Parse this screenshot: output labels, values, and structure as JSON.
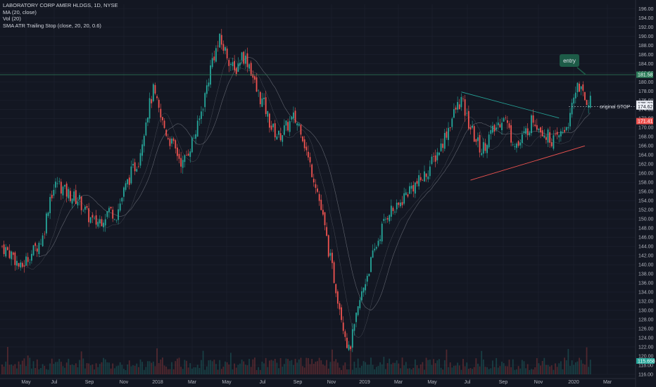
{
  "legend": {
    "title": "LABORATORY CORP AMER HLDGS, 1D, NYSE",
    "ma": "MA (20, close)",
    "vol": "Vol (20)",
    "sma": "SMA ATR Trailing Stop (close, 20, 20, 0.6)"
  },
  "annotations": {
    "entry": "entry",
    "stop": "original STOP"
  },
  "price_tags": {
    "entry": "181.58",
    "current": "175.23",
    "stop_level": "174.62",
    "sma_value": "171.41",
    "volume": "115.658"
  },
  "colors": {
    "background": "#131722",
    "up": "#26a69a",
    "down": "#ef5350",
    "grid": "#1e2230",
    "entry_line": "#2e7d5b",
    "trendline_top": "#26a69a",
    "trendline_bottom": "#ef5350",
    "entry_box": "#1d5b47",
    "ma": "#9598a1"
  },
  "chart_data": {
    "type": "candlestick",
    "symbol": "LABORATORY CORP AMER HLDGS",
    "exchange": "NYSE",
    "interval": "1D",
    "ylim": [
      116,
      197
    ],
    "y_ticks": [
      "196.00",
      "194.00",
      "192.00",
      "190.00",
      "188.00",
      "186.00",
      "184.00",
      "182.00",
      "180.00",
      "178.00",
      "176.00",
      "174.00",
      "172.00",
      "170.00",
      "168.00",
      "166.00",
      "164.00",
      "162.00",
      "160.00",
      "158.00",
      "156.00",
      "154.00",
      "152.00",
      "150.00",
      "148.00",
      "146.00",
      "144.00",
      "142.00",
      "140.00",
      "138.00",
      "136.00",
      "134.00",
      "132.00",
      "130.00",
      "128.00",
      "126.00",
      "124.00",
      "122.00",
      "120.00",
      "118.00",
      "116.00"
    ],
    "x_ticks": [
      "May",
      "Jul",
      "Sep",
      "Nov",
      "2018",
      "Mar",
      "May",
      "Jul",
      "Sep",
      "Nov",
      "2019",
      "Mar",
      "May",
      "Jul",
      "Sep",
      "Nov",
      "2020",
      "Mar"
    ],
    "price_path": [
      [
        0,
        144
      ],
      [
        6,
        142
      ],
      [
        10,
        139
      ],
      [
        13,
        141
      ],
      [
        17,
        143
      ],
      [
        22,
        146
      ],
      [
        26,
        155
      ],
      [
        30,
        158
      ],
      [
        34,
        156
      ],
      [
        38,
        155
      ],
      [
        42,
        154
      ],
      [
        46,
        151
      ],
      [
        50,
        149
      ],
      [
        54,
        150
      ],
      [
        58,
        152
      ],
      [
        62,
        151
      ],
      [
        66,
        156
      ],
      [
        70,
        160
      ],
      [
        74,
        163
      ],
      [
        78,
        172
      ],
      [
        82,
        178
      ],
      [
        86,
        172
      ],
      [
        90,
        168
      ],
      [
        94,
        165
      ],
      [
        98,
        162
      ],
      [
        102,
        166
      ],
      [
        106,
        170
      ],
      [
        110,
        177
      ],
      [
        114,
        185
      ],
      [
        118,
        189
      ],
      [
        122,
        186
      ],
      [
        126,
        182
      ],
      [
        130,
        186
      ],
      [
        134,
        184
      ],
      [
        138,
        178
      ],
      [
        142,
        175
      ],
      [
        146,
        170
      ],
      [
        150,
        168
      ],
      [
        154,
        170
      ],
      [
        158,
        172
      ],
      [
        162,
        170
      ],
      [
        166,
        163
      ],
      [
        170,
        158
      ],
      [
        174,
        150
      ],
      [
        178,
        141
      ],
      [
        182,
        133
      ],
      [
        185,
        127
      ],
      [
        188,
        121
      ],
      [
        191,
        126
      ],
      [
        194,
        132
      ],
      [
        198,
        138
      ],
      [
        202,
        143
      ],
      [
        206,
        148
      ],
      [
        210,
        152
      ],
      [
        214,
        152
      ],
      [
        218,
        155
      ],
      [
        222,
        157
      ],
      [
        226,
        158
      ],
      [
        230,
        160
      ],
      [
        234,
        163
      ],
      [
        238,
        166
      ],
      [
        242,
        170
      ],
      [
        246,
        174
      ],
      [
        249,
        176
      ],
      [
        252,
        172
      ],
      [
        256,
        168
      ],
      [
        260,
        165
      ],
      [
        264,
        168
      ],
      [
        268,
        170
      ],
      [
        272,
        173
      ],
      [
        276,
        168
      ],
      [
        280,
        166
      ],
      [
        284,
        169
      ],
      [
        288,
        172
      ],
      [
        292,
        170
      ],
      [
        296,
        168
      ],
      [
        300,
        167
      ],
      [
        304,
        169
      ],
      [
        308,
        172
      ],
      [
        312,
        180
      ],
      [
        316,
        176
      ]
    ],
    "entry_level": 181.58,
    "stop_level": 174.62,
    "trendline_top": [
      [
        249,
        177.8
      ],
      [
        302,
        172.1
      ]
    ],
    "trendline_bottom": [
      [
        254,
        158.5
      ],
      [
        316,
        166
      ]
    ]
  }
}
